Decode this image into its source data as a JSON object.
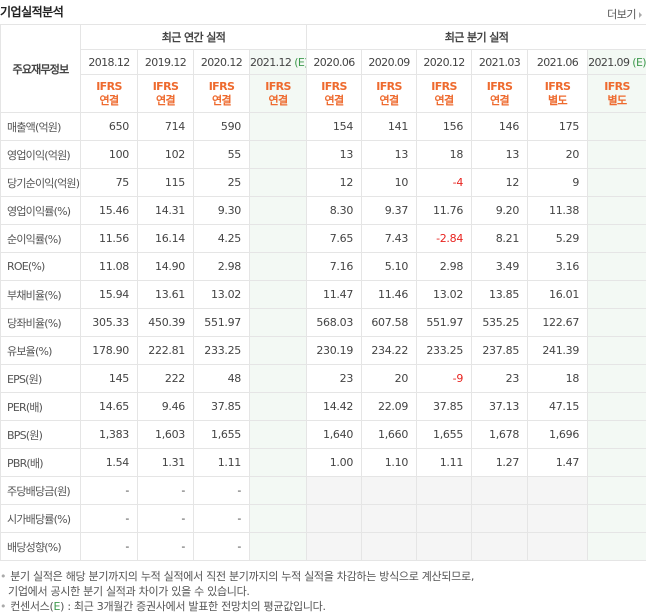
{
  "header": {
    "title": "기업실적분석",
    "more_label": "더보기"
  },
  "table": {
    "label_header": "주요재무정보",
    "annual_group": "최근 연간 실적",
    "quarter_group": "최근 분기 실적",
    "annual_periods": [
      {
        "date": "2018.12",
        "estimate": "",
        "std1": "IFRS",
        "std2": "연결"
      },
      {
        "date": "2019.12",
        "estimate": "",
        "std1": "IFRS",
        "std2": "연결"
      },
      {
        "date": "2020.12",
        "estimate": "",
        "std1": "IFRS",
        "std2": "연결"
      },
      {
        "date": "2021.12",
        "estimate": "(E)",
        "std1": "IFRS",
        "std2": "연결"
      }
    ],
    "quarter_periods": [
      {
        "date": "2020.06",
        "estimate": "",
        "std1": "IFRS",
        "std2": "연결"
      },
      {
        "date": "2020.09",
        "estimate": "",
        "std1": "IFRS",
        "std2": "연결"
      },
      {
        "date": "2020.12",
        "estimate": "",
        "std1": "IFRS",
        "std2": "연결"
      },
      {
        "date": "2021.03",
        "estimate": "",
        "std1": "IFRS",
        "std2": "연결"
      },
      {
        "date": "2021.06",
        "estimate": "",
        "std1": "IFRS",
        "std2": "별도"
      },
      {
        "date": "2021.09",
        "estimate": "(E)",
        "std1": "IFRS",
        "std2": "별도"
      }
    ],
    "rows": [
      {
        "label": "매출액(억원)",
        "annual": [
          "650",
          "714",
          "590",
          ""
        ],
        "quarter": [
          "154",
          "141",
          "156",
          "146",
          "175",
          ""
        ]
      },
      {
        "label": "영업이익(억원)",
        "annual": [
          "100",
          "102",
          "55",
          ""
        ],
        "quarter": [
          "13",
          "13",
          "18",
          "13",
          "20",
          ""
        ]
      },
      {
        "label": "당기순이익(억원)",
        "annual": [
          "75",
          "115",
          "25",
          ""
        ],
        "quarter": [
          "12",
          "10",
          "-4",
          "12",
          "9",
          ""
        ]
      },
      {
        "label": "영업이익률(%)",
        "annual": [
          "15.46",
          "14.31",
          "9.30",
          ""
        ],
        "quarter": [
          "8.30",
          "9.37",
          "11.76",
          "9.20",
          "11.38",
          ""
        ]
      },
      {
        "label": "순이익률(%)",
        "annual": [
          "11.56",
          "16.14",
          "4.25",
          ""
        ],
        "quarter": [
          "7.65",
          "7.43",
          "-2.84",
          "8.21",
          "5.29",
          ""
        ]
      },
      {
        "label": "ROE(%)",
        "annual": [
          "11.08",
          "14.90",
          "2.98",
          ""
        ],
        "quarter": [
          "7.16",
          "5.10",
          "2.98",
          "3.49",
          "3.16",
          ""
        ]
      },
      {
        "label": "부채비율(%)",
        "annual": [
          "15.94",
          "13.61",
          "13.02",
          ""
        ],
        "quarter": [
          "11.47",
          "11.46",
          "13.02",
          "13.85",
          "16.01",
          ""
        ]
      },
      {
        "label": "당좌비율(%)",
        "annual": [
          "305.33",
          "450.39",
          "551.97",
          ""
        ],
        "quarter": [
          "568.03",
          "607.58",
          "551.97",
          "535.25",
          "122.67",
          ""
        ]
      },
      {
        "label": "유보율(%)",
        "annual": [
          "178.90",
          "222.81",
          "233.25",
          ""
        ],
        "quarter": [
          "230.19",
          "234.22",
          "233.25",
          "237.85",
          "241.39",
          ""
        ]
      },
      {
        "label": "EPS(원)",
        "annual": [
          "145",
          "222",
          "48",
          ""
        ],
        "quarter": [
          "23",
          "20",
          "-9",
          "23",
          "18",
          ""
        ]
      },
      {
        "label": "PER(배)",
        "annual": [
          "14.65",
          "9.46",
          "37.85",
          ""
        ],
        "quarter": [
          "14.42",
          "22.09",
          "37.85",
          "37.13",
          "47.15",
          ""
        ]
      },
      {
        "label": "BPS(원)",
        "annual": [
          "1,383",
          "1,603",
          "1,655",
          ""
        ],
        "quarter": [
          "1,640",
          "1,660",
          "1,655",
          "1,678",
          "1,696",
          ""
        ]
      },
      {
        "label": "PBR(배)",
        "annual": [
          "1.54",
          "1.31",
          "1.11",
          ""
        ],
        "quarter": [
          "1.00",
          "1.10",
          "1.11",
          "1.27",
          "1.47",
          ""
        ]
      },
      {
        "label": "주당배당금(원)",
        "annual": [
          "-",
          "-",
          "-",
          ""
        ],
        "quarter": [
          "",
          "",
          "",
          "",
          "",
          ""
        ]
      },
      {
        "label": "시가배당률(%)",
        "annual": [
          "-",
          "-",
          "-",
          ""
        ],
        "quarter": [
          "",
          "",
          "",
          "",
          "",
          ""
        ]
      },
      {
        "label": "배당성향(%)",
        "annual": [
          "-",
          "-",
          "-",
          ""
        ],
        "quarter": [
          "",
          "",
          "",
          "",
          "",
          ""
        ]
      }
    ],
    "group_breaks": [
      3,
      6,
      9,
      13
    ]
  },
  "notes": {
    "line1": "분기 실적은 해당 분기까지의 누적 실적에서 직전 분기까지의 누적 실적을 차감하는 방식으로 계산되므로,",
    "line1b": "기업에서 공시한 분기 실적과 차이가 있을 수 있습니다.",
    "line2_pre": "컨센서스(",
    "line2_e": "E",
    "line2_post": ") : 최근 3개월간 증권사에서 발표한 전망치의 평균값입니다."
  },
  "colors": {
    "accent_orange": "#ee6a2e",
    "estimate_green": "#3f9a4e",
    "negative_red": "#e8231f",
    "estimate_bg": "#f3f9f4"
  }
}
